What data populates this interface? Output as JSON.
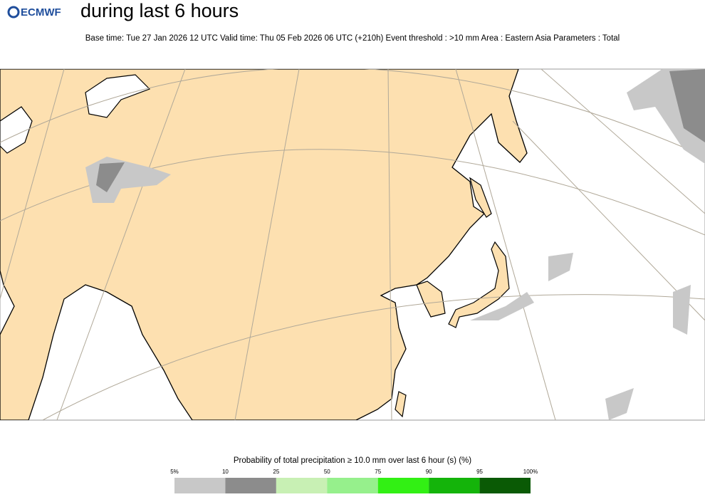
{
  "header": {
    "logo": "ECMWF",
    "title": "during last 6 hours",
    "subtitle": "Base time: Tue 27 Jan 2026 12 UTC Valid time: Thu 05 Feb 2026 06 UTC (+210h) Event threshold : >10 mm Area : Eastern Asia Parameters : Total"
  },
  "legend": {
    "title": "Probability of total precipitation ≥ 10.0 mm over last 6 hour (s) (%)",
    "labels": [
      "5%",
      "10",
      "25",
      "50",
      "75",
      "90",
      "95",
      "100%"
    ],
    "colors": [
      "#c8c8c8",
      "#8c8c8c",
      "#c8f0b4",
      "#96f08c",
      "#32f014",
      "#14b40a",
      "#0a5a05"
    ]
  }
}
